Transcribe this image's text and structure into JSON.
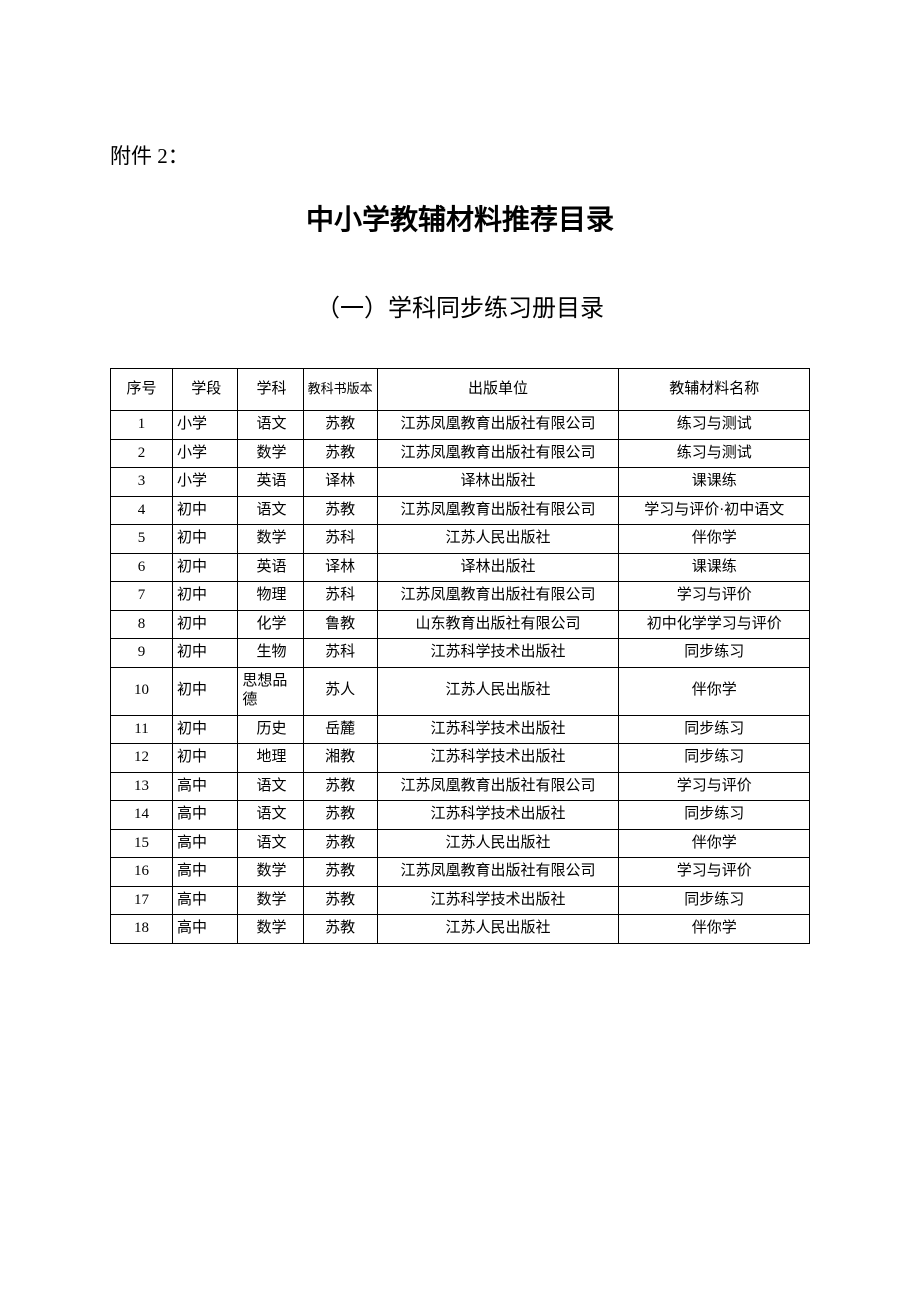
{
  "attachment_label": "附件 2：",
  "main_title": "中小学教辅材料推荐目录",
  "sub_title": "（一）学科同步练习册目录",
  "table": {
    "columns": [
      "序号",
      "学段",
      "学科",
      "教科书版本",
      "出版单位",
      "教辅材料名称"
    ],
    "rows": [
      {
        "no": "1",
        "stage": "小学",
        "subject": "语文",
        "version": "苏教",
        "publisher": "江苏凤凰教育出版社有限公司",
        "material": "练习与测试"
      },
      {
        "no": "2",
        "stage": "小学",
        "subject": "数学",
        "version": "苏教",
        "publisher": "江苏凤凰教育出版社有限公司",
        "material": "练习与测试"
      },
      {
        "no": "3",
        "stage": "小学",
        "subject": "英语",
        "version": "译林",
        "publisher": "译林出版社",
        "material": "课课练"
      },
      {
        "no": "4",
        "stage": "初中",
        "subject": "语文",
        "version": "苏教",
        "publisher": "江苏凤凰教育出版社有限公司",
        "material": "学习与评价·初中语文"
      },
      {
        "no": "5",
        "stage": "初中",
        "subject": "数学",
        "version": "苏科",
        "publisher": "江苏人民出版社",
        "material": "伴你学"
      },
      {
        "no": "6",
        "stage": "初中",
        "subject": "英语",
        "version": "译林",
        "publisher": "译林出版社",
        "material": "课课练"
      },
      {
        "no": "7",
        "stage": "初中",
        "subject": "物理",
        "version": "苏科",
        "publisher": "江苏凤凰教育出版社有限公司",
        "material": "学习与评价"
      },
      {
        "no": "8",
        "stage": "初中",
        "subject": "化学",
        "version": "鲁教",
        "publisher": "山东教育出版社有限公司",
        "material": "初中化学学习与评价"
      },
      {
        "no": "9",
        "stage": "初中",
        "subject": "生物",
        "version": "苏科",
        "publisher": "江苏科学技术出版社",
        "material": "同步练习"
      },
      {
        "no": "10",
        "stage": "初中",
        "subject": "思想品德",
        "version": "苏人",
        "publisher": "江苏人民出版社",
        "material": "伴你学"
      },
      {
        "no": "11",
        "stage": "初中",
        "subject": "历史",
        "version": "岳麓",
        "publisher": "江苏科学技术出版社",
        "material": "同步练习"
      },
      {
        "no": "12",
        "stage": "初中",
        "subject": "地理",
        "version": "湘教",
        "publisher": "江苏科学技术出版社",
        "material": "同步练习"
      },
      {
        "no": "13",
        "stage": "高中",
        "subject": "语文",
        "version": "苏教",
        "publisher": "江苏凤凰教育出版社有限公司",
        "material": "学习与评价"
      },
      {
        "no": "14",
        "stage": "高中",
        "subject": "语文",
        "version": "苏教",
        "publisher": "江苏科学技术出版社",
        "material": "同步练习"
      },
      {
        "no": "15",
        "stage": "高中",
        "subject": "语文",
        "version": "苏教",
        "publisher": "江苏人民出版社",
        "material": "伴你学"
      },
      {
        "no": "16",
        "stage": "高中",
        "subject": "数学",
        "version": "苏教",
        "publisher": "江苏凤凰教育出版社有限公司",
        "material": "学习与评价"
      },
      {
        "no": "17",
        "stage": "高中",
        "subject": "数学",
        "version": "苏教",
        "publisher": "江苏科学技术出版社",
        "material": "同步练习"
      },
      {
        "no": "18",
        "stage": "高中",
        "subject": "数学",
        "version": "苏教",
        "publisher": "江苏人民出版社",
        "material": "伴你学"
      }
    ]
  },
  "colors": {
    "background": "#ffffff",
    "text": "#000000",
    "border": "#000000"
  },
  "fonts": {
    "body_family": "SimSun",
    "title_family": "SimHei",
    "attachment_size": 21,
    "title_size": 28,
    "subtitle_size": 24,
    "table_size": 15
  }
}
